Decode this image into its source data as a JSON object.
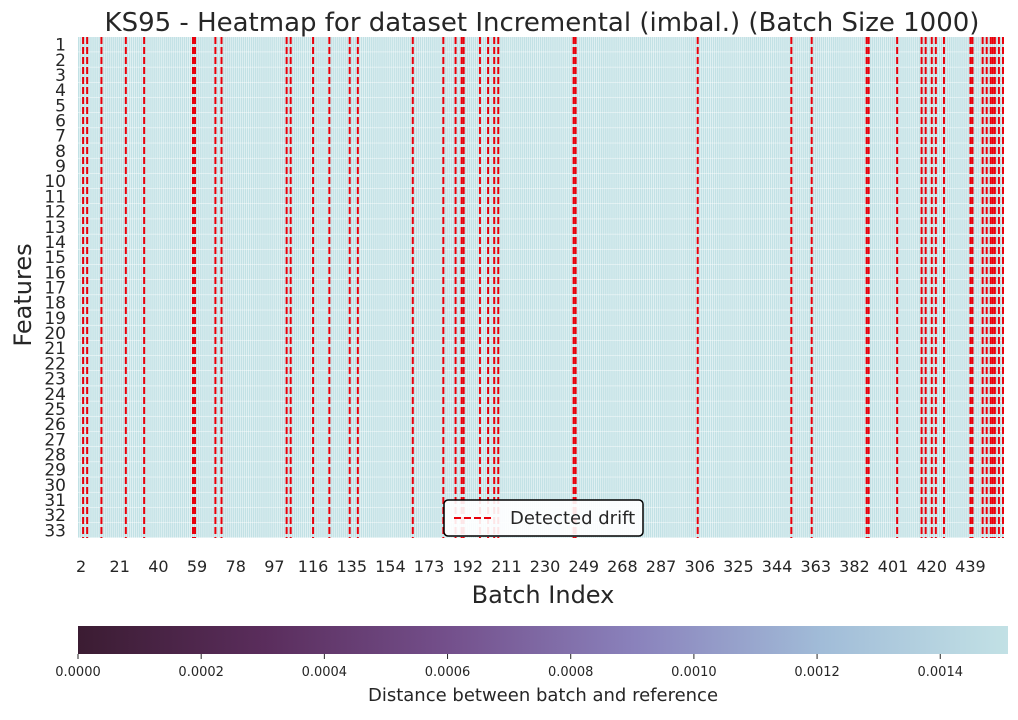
{
  "chart_data": {
    "type": "heatmap",
    "title": "KS95 - Heatmap for dataset Incremental (imbal.) (Batch Size 1000)",
    "xlabel": "Batch Index",
    "ylabel": "Features",
    "x_range": [
      1,
      455
    ],
    "x_ticks": [
      2,
      21,
      40,
      59,
      78,
      97,
      116,
      135,
      154,
      173,
      192,
      211,
      230,
      249,
      268,
      287,
      306,
      325,
      344,
      363,
      382,
      401,
      420,
      439
    ],
    "y_ticks": [
      1,
      2,
      3,
      4,
      5,
      6,
      7,
      8,
      9,
      10,
      11,
      12,
      13,
      14,
      15,
      16,
      17,
      18,
      19,
      20,
      21,
      22,
      23,
      24,
      25,
      26,
      27,
      28,
      29,
      30,
      31,
      32,
      33
    ],
    "cell_value_estimate": 0.00145,
    "colorbar": {
      "label": "Distance between batch and reference",
      "range": [
        0,
        0.00151
      ],
      "ticks": [
        "0.0000",
        "0.0002",
        "0.0004",
        "0.0006",
        "0.0008",
        "0.0010",
        "0.0012",
        "0.0014"
      ],
      "tick_values": [
        0,
        0.0002,
        0.0004,
        0.0006,
        0.0008,
        0.001,
        0.0012,
        0.0014
      ],
      "colors": [
        "#3b1c32",
        "#5a2d5c",
        "#74508c",
        "#8a82bc",
        "#a1bcd8",
        "#c2e1e5"
      ]
    },
    "grid_line_color": "#ffffff",
    "drift_line_color": "#e8000b",
    "detected_drift_batches": [
      3,
      5,
      12,
      24,
      33,
      57,
      58,
      68,
      71,
      103,
      105,
      116,
      124,
      134,
      138,
      165,
      180,
      186,
      189,
      190,
      198,
      202,
      205,
      207,
      244,
      245,
      305,
      351,
      361,
      388,
      389,
      403,
      415,
      417,
      420,
      422,
      426,
      439,
      440,
      445,
      447,
      449,
      450,
      451,
      453,
      455
    ],
    "legend": {
      "label": "Detected drift",
      "position": "lower-center"
    }
  }
}
